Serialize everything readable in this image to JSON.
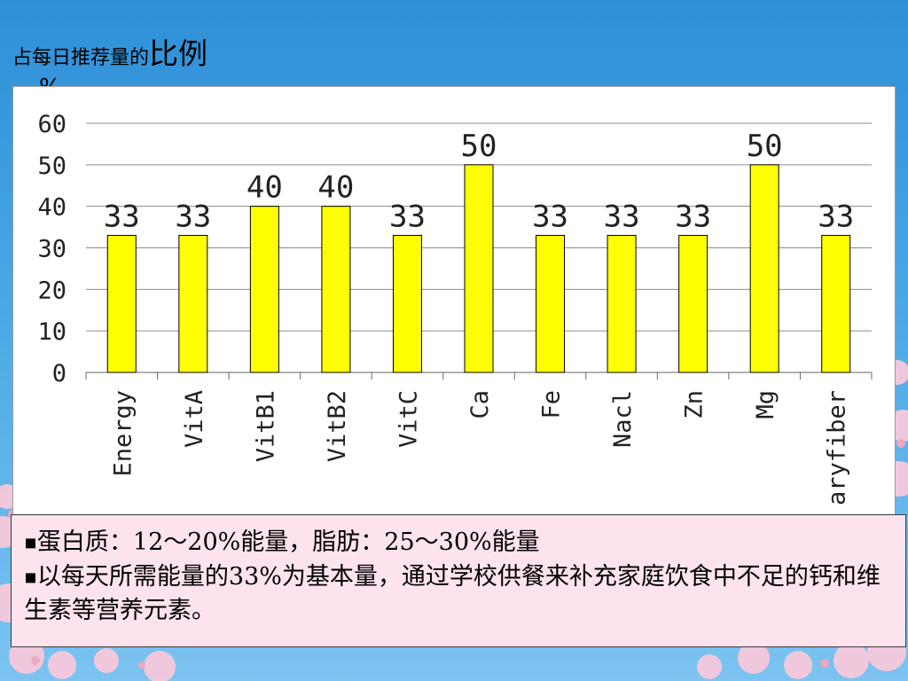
{
  "slide": {
    "title_small": "占每日推荐量的",
    "title_big": "比例",
    "unit": "%"
  },
  "notes": {
    "line1": "蛋白质：12～20%能量，脂肪：25～30%能量",
    "line2": "以每天所需能量的33%为基本量，通过学校供餐来补充家庭饮食中不足的钙和维生素等营养元素。"
  },
  "colors": {
    "bar_fill": "#ffff00",
    "bar_stroke": "#000000",
    "grid": "#8c8c8c",
    "note_background": "#fde3ee",
    "sky": "#3d9be0",
    "blossom": "#f7c9dc"
  },
  "chart_data": {
    "type": "bar",
    "title": "",
    "xlabel": "",
    "ylabel": "%",
    "categories": [
      "Energy",
      "VitA",
      "VitB1",
      "VitB2",
      "VitC",
      "Ca",
      "Fe",
      "Nacl",
      "Zn",
      "Mg",
      "aryfiber"
    ],
    "values": [
      33,
      33,
      40,
      40,
      33,
      50,
      33,
      33,
      33,
      50,
      33
    ],
    "y_ticks": [
      0,
      10,
      20,
      30,
      40,
      50,
      60
    ],
    "ylim": [
      0,
      60
    ],
    "grid": true,
    "legend": "none",
    "data_labels": true
  }
}
